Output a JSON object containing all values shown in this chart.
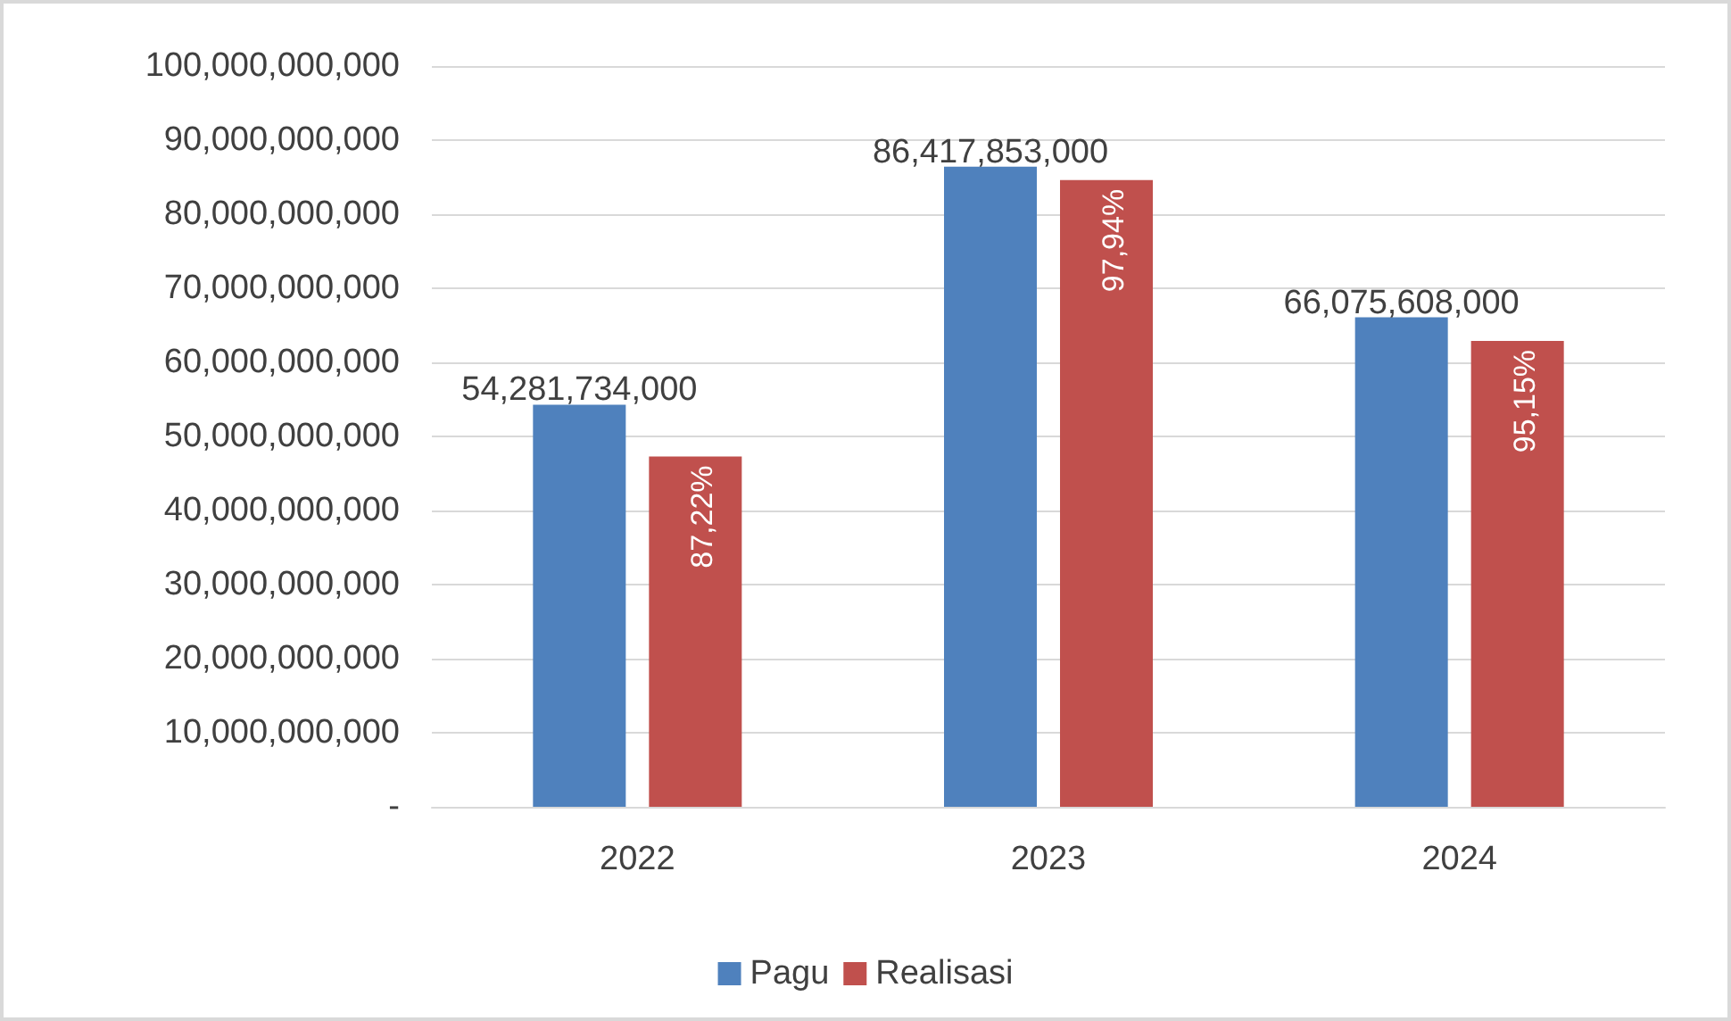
{
  "chart_data": {
    "type": "bar",
    "categories": [
      "2022",
      "2023",
      "2024"
    ],
    "series": [
      {
        "name": "Pagu",
        "color": "#4f81bd",
        "values": [
          54281734000,
          86417853000,
          66075608000
        ],
        "value_labels": [
          "54,281,734,000",
          "86,417,853,000",
          "66,075,608,000"
        ]
      },
      {
        "name": "Realisasi",
        "color": "#c0504d",
        "values": [
          47300000000,
          84600000000,
          62900000000
        ]
      }
    ],
    "annotations": [
      "87,22%",
      "97,94%",
      "95,15%"
    ],
    "ylim": [
      0,
      100000000000
    ],
    "yticks": [
      {
        "value": 0,
        "label": "-"
      },
      {
        "value": 10000000000,
        "label": "10,000,000,000"
      },
      {
        "value": 20000000000,
        "label": "20,000,000,000"
      },
      {
        "value": 30000000000,
        "label": "30,000,000,000"
      },
      {
        "value": 40000000000,
        "label": "40,000,000,000"
      },
      {
        "value": 50000000000,
        "label": "50,000,000,000"
      },
      {
        "value": 60000000000,
        "label": "60,000,000,000"
      },
      {
        "value": 70000000000,
        "label": "70,000,000,000"
      },
      {
        "value": 80000000000,
        "label": "80,000,000,000"
      },
      {
        "value": 90000000000,
        "label": "90,000,000,000"
      },
      {
        "value": 100000000000,
        "label": "100,000,000,000"
      }
    ],
    "grid": "y",
    "legend": "bottom"
  }
}
